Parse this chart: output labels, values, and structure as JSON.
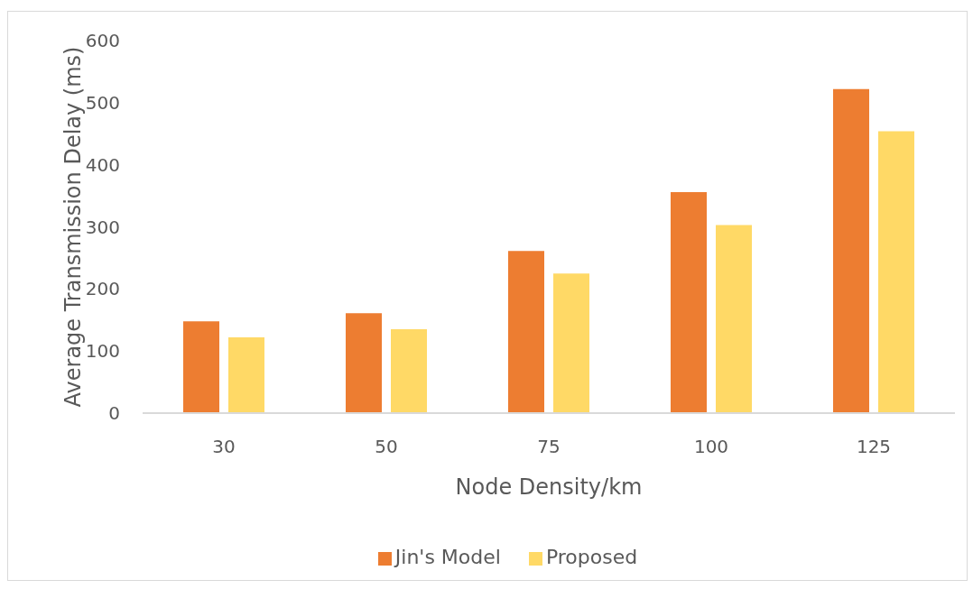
{
  "chart_data": {
    "type": "bar",
    "xlabel": "Node Density/km",
    "ylabel": "Average Transmission Delay (ms)",
    "categories": [
      "30",
      "50",
      "75",
      "100",
      "125"
    ],
    "series": [
      {
        "name": "Jin's Model",
        "color": "#ed7d31",
        "values": [
          148,
          161,
          261,
          356,
          522
        ]
      },
      {
        "name": "Proposed",
        "color": "#ffd966",
        "values": [
          122,
          135,
          225,
          303,
          454
        ]
      }
    ],
    "ylim": [
      0,
      600
    ],
    "yticks": [
      0,
      100,
      200,
      300,
      400,
      500,
      600
    ],
    "legend": "bottom"
  }
}
